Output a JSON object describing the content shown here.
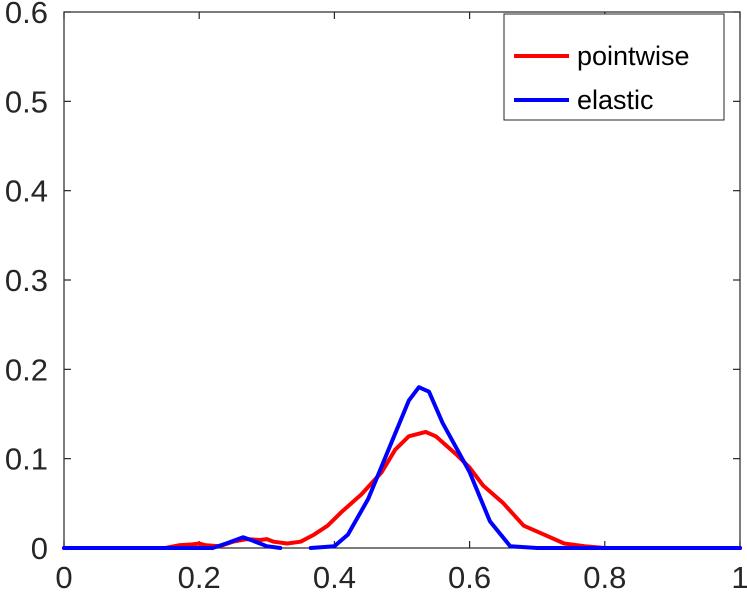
{
  "chart_data": {
    "type": "line",
    "title": "",
    "xlabel": "",
    "ylabel": "",
    "xlim": [
      0,
      1
    ],
    "ylim": [
      0,
      0.6
    ],
    "x_ticks": [
      0,
      0.2,
      0.4,
      0.6,
      0.8,
      1
    ],
    "x_tick_labels": [
      "0",
      "0.2",
      "0.4",
      "0.6",
      "0.8",
      "1"
    ],
    "y_ticks": [
      0,
      0.1,
      0.2,
      0.3,
      0.4,
      0.5,
      0.6
    ],
    "y_tick_labels": [
      "0",
      "0.1",
      "0.2",
      "0.3",
      "0.4",
      "0.5",
      "0.6"
    ],
    "grid": false,
    "legend_position": "top-right",
    "series": [
      {
        "name": "pointwise",
        "color": "#ff0000",
        "points": [
          [
            0.0,
            0.0
          ],
          [
            0.1,
            0.0
          ],
          [
            0.15,
            0.0
          ],
          [
            0.17,
            0.003
          ],
          [
            0.19,
            0.004
          ],
          [
            0.2,
            0.005
          ],
          [
            0.21,
            0.003
          ],
          [
            0.23,
            0.002
          ],
          [
            0.25,
            0.007
          ],
          [
            0.27,
            0.01
          ],
          [
            0.29,
            0.009
          ],
          [
            0.3,
            0.01
          ],
          [
            0.31,
            0.007
          ],
          [
            0.33,
            0.005
          ],
          [
            0.35,
            0.007
          ],
          [
            0.37,
            0.015
          ],
          [
            0.39,
            0.025
          ],
          [
            0.41,
            0.04
          ],
          [
            0.44,
            0.06
          ],
          [
            0.47,
            0.085
          ],
          [
            0.49,
            0.11
          ],
          [
            0.51,
            0.125
          ],
          [
            0.535,
            0.13
          ],
          [
            0.55,
            0.125
          ],
          [
            0.58,
            0.105
          ],
          [
            0.6,
            0.09
          ],
          [
            0.62,
            0.07
          ],
          [
            0.65,
            0.05
          ],
          [
            0.68,
            0.025
          ],
          [
            0.71,
            0.015
          ],
          [
            0.74,
            0.005
          ],
          [
            0.77,
            0.002
          ],
          [
            0.8,
            0.0
          ],
          [
            1.0,
            0.0
          ]
        ]
      },
      {
        "name": "elastic",
        "color": "#0000ff",
        "segments": [
          [
            [
              0.0,
              0.0
            ],
            [
              0.15,
              0.0
            ],
            [
              0.22,
              0.0
            ],
            [
              0.24,
              0.005
            ],
            [
              0.265,
              0.012
            ],
            [
              0.28,
              0.008
            ],
            [
              0.3,
              0.002
            ],
            [
              0.32,
              0.0
            ]
          ],
          [
            [
              0.365,
              0.0
            ],
            [
              0.4,
              0.002
            ],
            [
              0.42,
              0.015
            ],
            [
              0.45,
              0.055
            ],
            [
              0.48,
              0.11
            ],
            [
              0.51,
              0.165
            ],
            [
              0.525,
              0.18
            ],
            [
              0.54,
              0.175
            ],
            [
              0.56,
              0.14
            ],
            [
              0.6,
              0.085
            ],
            [
              0.63,
              0.03
            ],
            [
              0.66,
              0.002
            ],
            [
              0.7,
              0.0
            ],
            [
              1.0,
              0.0
            ]
          ]
        ]
      }
    ]
  }
}
